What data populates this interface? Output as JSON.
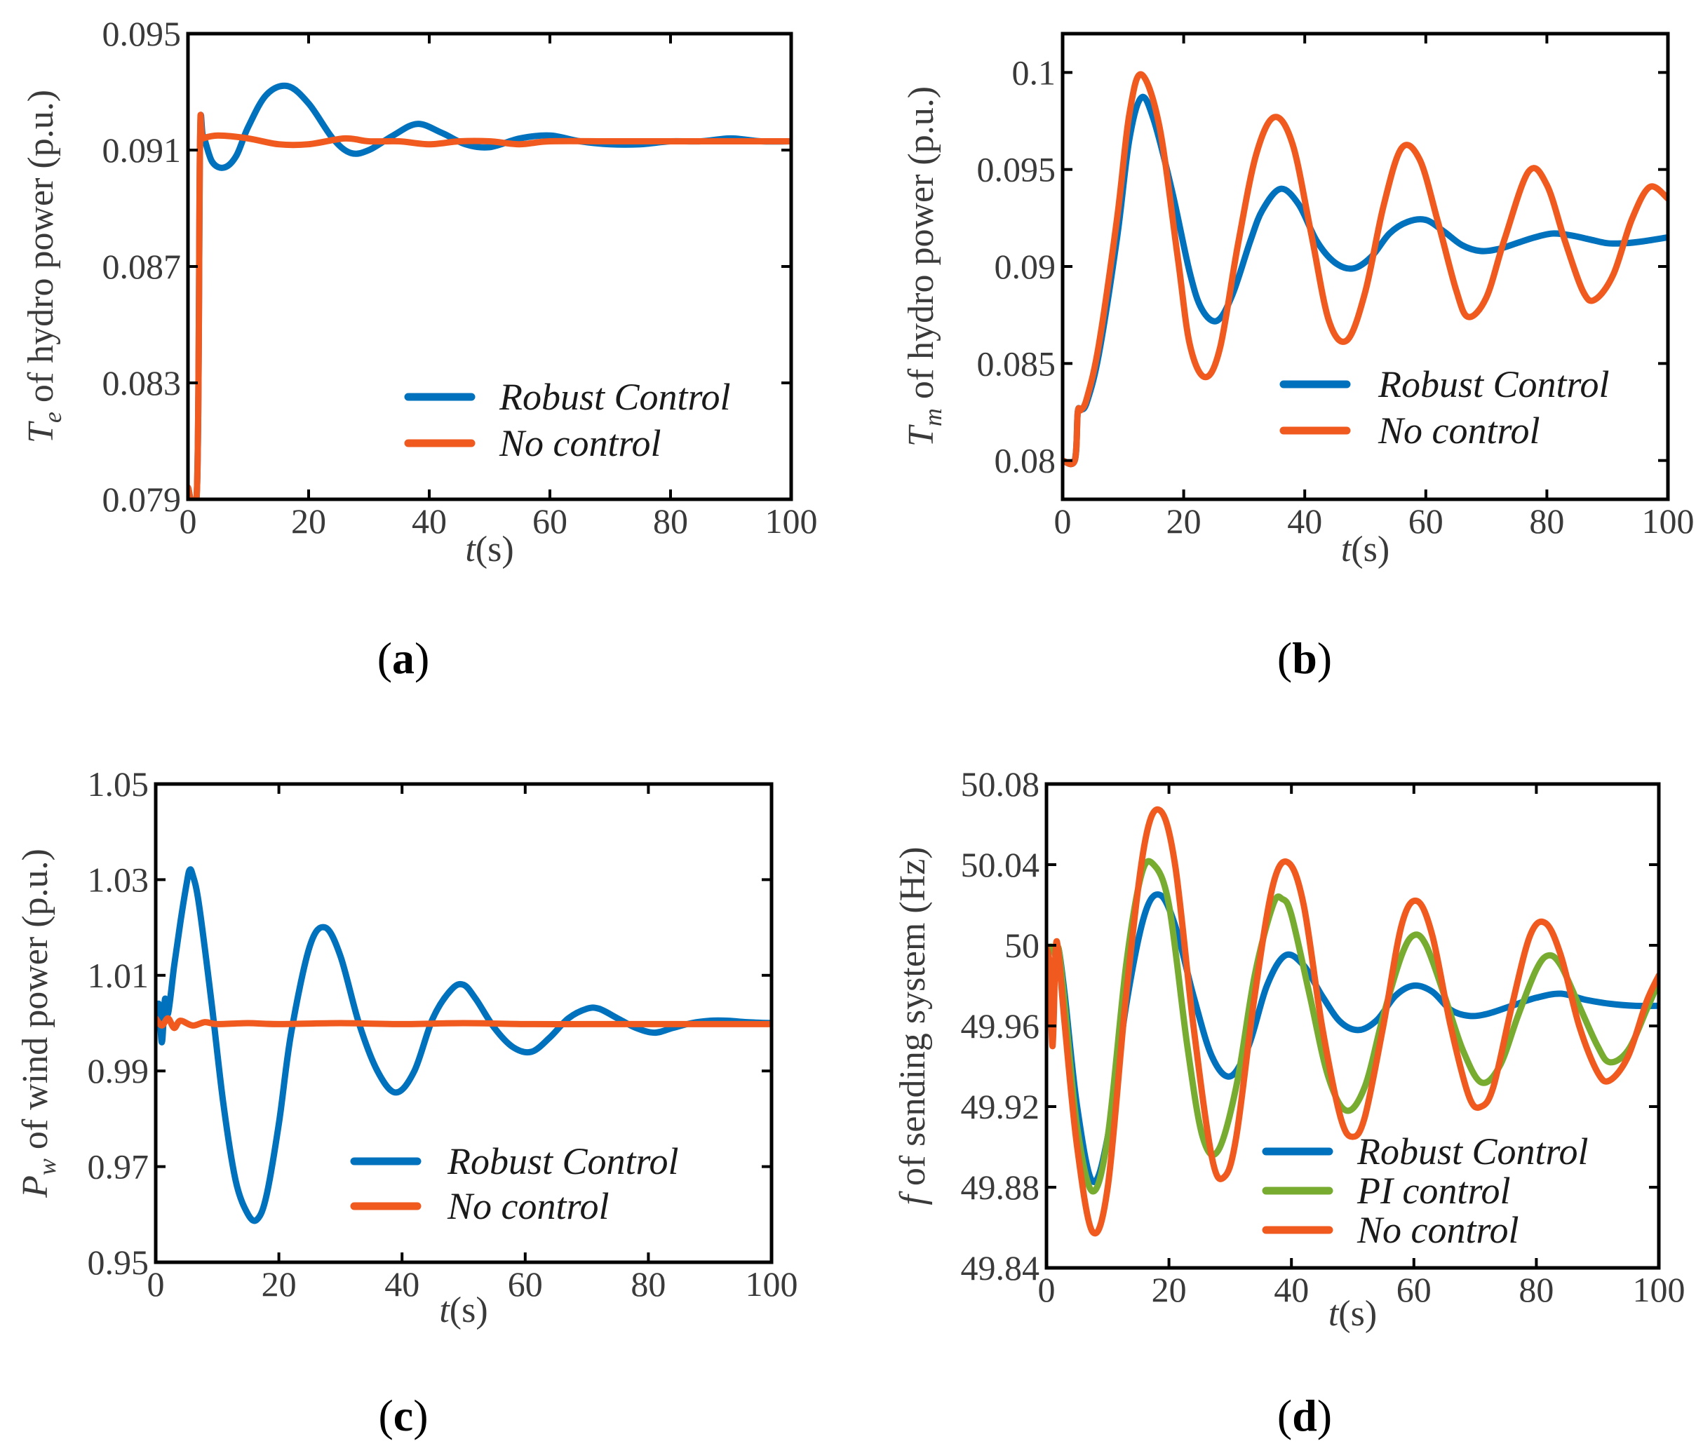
{
  "colors": {
    "robust": "#0072BD",
    "no_control": "#F15A1F",
    "pi": "#77AC30"
  },
  "chart_data": [
    {
      "id": "a",
      "type": "line",
      "caption_letter": "a",
      "ylabel_symbol": "T",
      "ylabel_subscript": "e",
      "ylabel_text": " of hydro power (p.u.)",
      "xlabel_symbol": "t",
      "xlabel_unit": "(s)",
      "xlim": [
        0,
        100
      ],
      "ylim": [
        0.079,
        0.095
      ],
      "xticks": [
        0,
        20,
        40,
        60,
        80,
        100
      ],
      "xtick_labels": [
        "0",
        "20",
        "40",
        "60",
        "80",
        "100"
      ],
      "yticks": [
        0.079,
        0.083,
        0.087,
        0.091,
        0.095
      ],
      "ytick_labels": [
        "0.079",
        "0.083",
        "0.087",
        "0.091",
        "0.095"
      ],
      "legend": [
        "Robust Control",
        "No control"
      ],
      "series": [
        {
          "name": "Robust Control",
          "color_key": "robust",
          "x": [
            0,
            1.5,
            2,
            2.5,
            4,
            6,
            8,
            10,
            13,
            16.5,
            20,
            24,
            27,
            30,
            34,
            38,
            42,
            46,
            50,
            55,
            60,
            65,
            70,
            75,
            80,
            85,
            90,
            95,
            100
          ],
          "y": [
            0.0794,
            0.0794,
            0.0912,
            0.0915,
            0.0906,
            0.0904,
            0.0908,
            0.0918,
            0.0929,
            0.0932,
            0.0926,
            0.0914,
            0.0909,
            0.091,
            0.0915,
            0.0919,
            0.0916,
            0.0912,
            0.0911,
            0.0914,
            0.0915,
            0.0913,
            0.0912,
            0.0912,
            0.0913,
            0.0913,
            0.0914,
            0.0913,
            0.0913
          ]
        },
        {
          "name": "No control",
          "color_key": "no_control",
          "x": [
            0,
            1.5,
            2,
            2.5,
            5,
            10,
            15,
            20,
            26,
            30,
            35,
            40,
            45,
            50,
            55,
            60,
            70,
            80,
            90,
            100
          ],
          "y": [
            0.0794,
            0.0794,
            0.0913,
            0.0914,
            0.0915,
            0.0914,
            0.0912,
            0.0912,
            0.0914,
            0.0913,
            0.0913,
            0.0912,
            0.0913,
            0.0913,
            0.0912,
            0.0913,
            0.0913,
            0.0913,
            0.0913,
            0.0913
          ]
        }
      ]
    },
    {
      "id": "b",
      "type": "line",
      "caption_letter": "b",
      "ylabel_symbol": "T",
      "ylabel_subscript": "m",
      "ylabel_text": " of hydro power (p.u.)",
      "xlabel_symbol": "t",
      "xlabel_unit": "(s)",
      "xlim": [
        0,
        100
      ],
      "ylim": [
        0.078,
        0.102
      ],
      "xticks": [
        0,
        20,
        40,
        60,
        80,
        100
      ],
      "xtick_labels": [
        "0",
        "20",
        "40",
        "60",
        "80",
        "100"
      ],
      "yticks": [
        0.08,
        0.085,
        0.09,
        0.095,
        0.1
      ],
      "ytick_labels": [
        "0.08",
        "0.085",
        "0.09",
        "0.095",
        "0.1"
      ],
      "legend": [
        "Robust Control",
        "No control"
      ],
      "series": [
        {
          "name": "Robust Control",
          "color_key": "robust",
          "x": [
            0,
            2,
            2.5,
            3,
            4,
            6,
            9,
            11,
            13,
            15,
            18,
            21,
            23,
            25.5,
            28,
            31,
            33,
            36,
            39,
            42,
            45,
            48,
            51,
            54,
            57,
            60,
            63,
            66,
            69,
            72,
            75,
            78,
            81,
            84,
            87,
            90,
            93,
            96,
            100
          ],
          "y": [
            0.08,
            0.08,
            0.0825,
            0.0826,
            0.083,
            0.0855,
            0.0915,
            0.0965,
            0.0987,
            0.0976,
            0.094,
            0.0897,
            0.0878,
            0.0872,
            0.0885,
            0.0913,
            0.0929,
            0.094,
            0.0932,
            0.0913,
            0.0902,
            0.0899,
            0.0905,
            0.0917,
            0.0923,
            0.0924,
            0.0918,
            0.0911,
            0.0908,
            0.0909,
            0.0912,
            0.0915,
            0.0917,
            0.0916,
            0.0914,
            0.0912,
            0.0912,
            0.0913,
            0.0915
          ]
        },
        {
          "name": "No control",
          "color_key": "no_control",
          "x": [
            0,
            2,
            2.5,
            3,
            4,
            6,
            9,
            11,
            13,
            16,
            19,
            21,
            23.5,
            26,
            29,
            32,
            35,
            38,
            41,
            44,
            47,
            50,
            53,
            56,
            59,
            62,
            65,
            67,
            70,
            73,
            77,
            80,
            83,
            86,
            88,
            91,
            94,
            97,
            100
          ],
          "y": [
            0.08,
            0.08,
            0.0825,
            0.0826,
            0.0832,
            0.086,
            0.0925,
            0.0978,
            0.0999,
            0.0972,
            0.0905,
            0.086,
            0.0843,
            0.0858,
            0.0912,
            0.0958,
            0.0977,
            0.0963,
            0.0918,
            0.0872,
            0.0862,
            0.0887,
            0.0931,
            0.0961,
            0.0955,
            0.0923,
            0.0888,
            0.0874,
            0.0884,
            0.0914,
            0.0949,
            0.0942,
            0.0913,
            0.0887,
            0.0883,
            0.0896,
            0.0924,
            0.0941,
            0.0935
          ]
        }
      ]
    },
    {
      "id": "c",
      "type": "line",
      "caption_letter": "c",
      "ylabel_symbol": "P",
      "ylabel_subscript": "w",
      "ylabel_text": " of wind power (p.u.)",
      "xlabel_symbol": "t",
      "xlabel_unit": "(s)",
      "xlim": [
        0,
        100
      ],
      "ylim": [
        0.95,
        1.05
      ],
      "xticks": [
        0,
        20,
        40,
        60,
        80,
        100
      ],
      "xtick_labels": [
        "0",
        "20",
        "40",
        "60",
        "80",
        "100"
      ],
      "yticks": [
        0.95,
        0.97,
        0.99,
        1.01,
        1.03,
        1.05
      ],
      "ytick_labels": [
        "0.95",
        "0.97",
        "0.99",
        "1.01",
        "1.03",
        "1.05"
      ],
      "legend": [
        "Robust Control",
        "No control"
      ],
      "series": [
        {
          "name": "Robust Control",
          "color_key": "robust",
          "x": [
            0,
            0.5,
            1,
            1.5,
            2,
            3,
            4,
            5,
            5.5,
            6,
            7,
            9,
            11,
            13,
            15,
            16.5,
            18,
            20,
            22,
            25,
            27.5,
            30,
            33,
            36,
            39,
            42,
            45,
            48,
            50,
            52,
            55,
            58,
            61,
            64,
            67,
            70,
            72,
            75,
            78,
            81,
            84,
            87,
            90,
            93,
            96,
            100
          ],
          "y": [
            1.0,
            1.004,
            0.996,
            1.005,
            1.002,
            1.012,
            1.021,
            1.029,
            1.032,
            1.031,
            1.025,
            1.005,
            0.983,
            0.967,
            0.96,
            0.959,
            0.964,
            0.979,
            0.998,
            1.016,
            1.02,
            1.014,
            1.0,
            0.99,
            0.9855,
            0.99,
            1.001,
            1.007,
            1.008,
            1.005,
            0.999,
            0.995,
            0.994,
            0.997,
            1.001,
            1.003,
            1.003,
            1.001,
            0.999,
            0.998,
            0.999,
            1.0,
            1.0005,
            1.0005,
            1.0002,
            1.0
          ]
        },
        {
          "name": "No control",
          "color_key": "no_control",
          "x": [
            0,
            1,
            2,
            3,
            4,
            6,
            8,
            10,
            15,
            20,
            30,
            40,
            50,
            60,
            70,
            80,
            90,
            100
          ],
          "y": [
            1.001,
            0.9995,
            1.001,
            0.999,
            1.0005,
            0.9995,
            1.0002,
            0.9998,
            1.0,
            0.9998,
            1.0,
            0.9998,
            1.0,
            0.9998,
            0.9998,
            0.9998,
            0.9998,
            0.9998
          ]
        }
      ]
    },
    {
      "id": "d",
      "type": "line",
      "caption_letter": "d",
      "ylabel_symbol": "f",
      "ylabel_subscript": "",
      "ylabel_text": " of sending system (Hz)",
      "xlabel_symbol": "t",
      "xlabel_unit": "(s)",
      "xlim": [
        0,
        100
      ],
      "ylim": [
        49.84,
        50.08
      ],
      "xticks": [
        0,
        20,
        40,
        60,
        80,
        100
      ],
      "xtick_labels": [
        "0",
        "20",
        "40",
        "60",
        "80",
        "100"
      ],
      "yticks": [
        49.84,
        49.88,
        49.92,
        49.96,
        50.0,
        50.04,
        50.08
      ],
      "ytick_labels": [
        "49.84",
        "49.88",
        "49.92",
        "49.96",
        "50",
        "50.04",
        "50.08"
      ],
      "legend": [
        "Robust Control",
        "PI control",
        "No control"
      ],
      "series": [
        {
          "name": "Robust Control",
          "color_key": "robust",
          "x": [
            0,
            1,
            1.5,
            2,
            3,
            5,
            7.5,
            10,
            13,
            16,
            18.5,
            21,
            24,
            27,
            30,
            33,
            36,
            39,
            42,
            45,
            48,
            51,
            54,
            57,
            60,
            63,
            66,
            69,
            72,
            76,
            80,
            84,
            88,
            92,
            96,
            100
          ],
          "y": [
            49.999,
            49.999,
            49.995,
            49.998,
            49.975,
            49.92,
            49.883,
            49.905,
            49.97,
            50.015,
            50.025,
            50.01,
            49.975,
            49.945,
            49.935,
            49.95,
            49.98,
            49.995,
            49.99,
            49.975,
            49.962,
            49.958,
            49.963,
            49.975,
            49.98,
            49.977,
            49.968,
            49.965,
            49.966,
            49.97,
            49.974,
            49.976,
            49.973,
            49.971,
            49.97,
            49.97
          ]
        },
        {
          "name": "PI control",
          "color_key": "pi",
          "x": [
            0,
            1,
            1.5,
            2,
            3,
            5,
            7.5,
            10,
            13,
            15.5,
            17.5,
            20,
            23,
            25.5,
            28,
            31,
            34,
            37,
            38.5,
            40,
            43,
            46,
            49,
            52,
            55,
            58,
            60,
            62,
            65,
            68,
            71,
            74,
            77,
            80,
            82,
            84,
            87,
            90,
            92,
            95,
            98,
            100
          ],
          "y": [
            49.999,
            49.999,
            49.995,
            49.998,
            49.97,
            49.91,
            49.878,
            49.905,
            49.99,
            50.035,
            50.04,
            50.02,
            49.95,
            49.905,
            49.898,
            49.93,
            49.985,
            50.02,
            50.023,
            50.015,
            49.975,
            49.935,
            49.918,
            49.93,
            49.965,
            49.995,
            50.005,
            50.0,
            49.975,
            49.948,
            49.932,
            49.94,
            49.965,
            49.988,
            49.995,
            49.99,
            49.97,
            49.95,
            49.942,
            49.948,
            49.968,
            49.982
          ]
        },
        {
          "name": "No control",
          "color_key": "no_control",
          "x": [
            0,
            0.5,
            1,
            1.5,
            2,
            3,
            5,
            7.5,
            10,
            13,
            16,
            18.5,
            21,
            24,
            27,
            29,
            31,
            34,
            37,
            39.5,
            42,
            45,
            48,
            50,
            52,
            55,
            58,
            60.5,
            63,
            66,
            69,
            71,
            73,
            76,
            79,
            81.5,
            84,
            87,
            90,
            92,
            95,
            98,
            100
          ],
          "y": [
            49.999,
            49.99,
            49.95,
            49.998,
            49.995,
            49.96,
            49.9,
            49.858,
            49.88,
            49.975,
            50.05,
            50.067,
            50.04,
            49.96,
            49.895,
            49.885,
            49.905,
            49.975,
            50.03,
            50.041,
            50.02,
            49.96,
            49.915,
            49.905,
            49.915,
            49.96,
            50.01,
            50.022,
            50.005,
            49.96,
            49.925,
            49.92,
            49.93,
            49.97,
            50.005,
            50.011,
            49.995,
            49.96,
            49.937,
            49.933,
            49.945,
            49.972,
            49.985
          ]
        }
      ]
    }
  ]
}
